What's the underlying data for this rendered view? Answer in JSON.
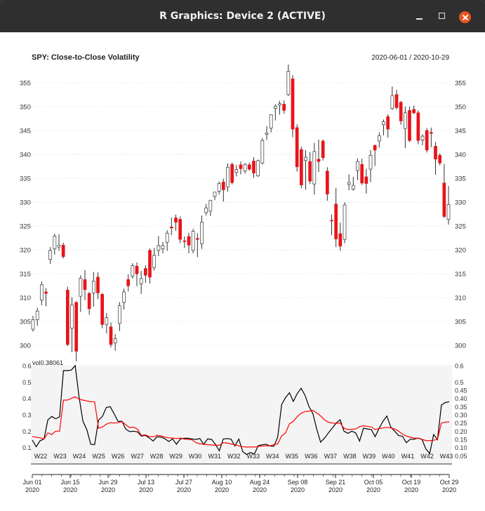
{
  "window": {
    "title": "R Graphics: Device 2 (ACTIVE)"
  },
  "chart_data": [
    {
      "type": "candlestick",
      "title": "SPY:  Close-to-Close Volatility",
      "date_range": "2020-06-01 / 2020-10-29",
      "y_ticks": [
        300,
        305,
        310,
        315,
        320,
        325,
        330,
        335,
        340,
        345,
        350,
        355
      ],
      "ylim": [
        296.5,
        358.5
      ],
      "grid": true,
      "up_color": "#ffffff",
      "down_color": "#e8141a",
      "candles": [
        {
          "o": 303.4,
          "h": 306.2,
          "l": 302.9,
          "c": 305.4
        },
        {
          "o": 305.4,
          "h": 307.9,
          "l": 304.1,
          "c": 307.2
        },
        {
          "o": 309.5,
          "h": 313.4,
          "l": 308.4,
          "c": 312.7
        },
        {
          "o": 311.2,
          "h": 312.0,
          "l": 308.2,
          "c": 310.9
        },
        {
          "o": 318.0,
          "h": 320.6,
          "l": 317.1,
          "c": 319.9
        },
        {
          "o": 320.2,
          "h": 323.4,
          "l": 319.0,
          "c": 322.9
        },
        {
          "o": 320.6,
          "h": 323.3,
          "l": 319.8,
          "c": 321.0
        },
        {
          "o": 321.0,
          "h": 321.5,
          "l": 318.2,
          "c": 318.6
        },
        {
          "o": 311.6,
          "h": 312.3,
          "l": 299.9,
          "c": 300.2
        },
        {
          "o": 303.6,
          "h": 310.1,
          "l": 298.6,
          "c": 308.5
        },
        {
          "o": 309.0,
          "h": 309.3,
          "l": 296.7,
          "c": 298.8
        },
        {
          "o": 310.3,
          "h": 314.7,
          "l": 307.0,
          "c": 314.1
        },
        {
          "o": 313.8,
          "h": 315.8,
          "l": 309.5,
          "c": 311.7
        },
        {
          "o": 310.9,
          "h": 311.2,
          "l": 306.4,
          "c": 307.7
        },
        {
          "o": 311.0,
          "h": 315.4,
          "l": 308.1,
          "c": 313.5
        },
        {
          "o": 314.3,
          "h": 315.3,
          "l": 309.7,
          "c": 311.0
        },
        {
          "o": 310.7,
          "h": 311.0,
          "l": 303.6,
          "c": 304.4
        },
        {
          "o": 304.4,
          "h": 306.8,
          "l": 302.5,
          "c": 305.8
        },
        {
          "o": 303.9,
          "h": 304.8,
          "l": 299.6,
          "c": 300.2
        },
        {
          "o": 300.5,
          "h": 302.4,
          "l": 298.9,
          "c": 301.4
        },
        {
          "o": 304.6,
          "h": 309.1,
          "l": 303.0,
          "c": 308.3
        },
        {
          "o": 309.0,
          "h": 311.9,
          "l": 307.5,
          "c": 311.2
        },
        {
          "o": 313.8,
          "h": 314.9,
          "l": 311.3,
          "c": 312.5
        },
        {
          "o": 314.5,
          "h": 317.2,
          "l": 314.0,
          "c": 316.7
        },
        {
          "o": 316.6,
          "h": 317.4,
          "l": 312.4,
          "c": 315.0
        },
        {
          "o": 312.9,
          "h": 315.6,
          "l": 310.8,
          "c": 314.0
        },
        {
          "o": 316.1,
          "h": 316.8,
          "l": 313.1,
          "c": 314.7
        },
        {
          "o": 319.9,
          "h": 320.3,
          "l": 313.0,
          "c": 314.3
        },
        {
          "o": 316.3,
          "h": 320.4,
          "l": 315.7,
          "c": 318.9
        },
        {
          "o": 319.9,
          "h": 322.9,
          "l": 318.7,
          "c": 320.9
        },
        {
          "o": 320.2,
          "h": 321.7,
          "l": 319.3,
          "c": 320.9
        },
        {
          "o": 321.6,
          "h": 324.1,
          "l": 319.8,
          "c": 323.5
        },
        {
          "o": 324.8,
          "h": 326.8,
          "l": 323.1,
          "c": 324.6
        },
        {
          "o": 326.7,
          "h": 327.4,
          "l": 324.0,
          "c": 325.8
        },
        {
          "o": 326.4,
          "h": 327.0,
          "l": 321.4,
          "c": 322.2
        },
        {
          "o": 321.9,
          "h": 322.8,
          "l": 320.4,
          "c": 321.8
        },
        {
          "o": 322.8,
          "h": 323.6,
          "l": 319.3,
          "c": 321.0
        },
        {
          "o": 319.9,
          "h": 324.4,
          "l": 319.3,
          "c": 323.9
        },
        {
          "o": 322.4,
          "h": 323.5,
          "l": 318.5,
          "c": 322.2
        },
        {
          "o": 321.3,
          "h": 327.2,
          "l": 320.2,
          "c": 325.8
        },
        {
          "o": 327.8,
          "h": 329.6,
          "l": 327.2,
          "c": 328.8
        },
        {
          "o": 328.1,
          "h": 330.4,
          "l": 327.1,
          "c": 330.4
        },
        {
          "o": 331.2,
          "h": 332.1,
          "l": 330.4,
          "c": 332.1
        },
        {
          "o": 332.3,
          "h": 334.3,
          "l": 331.6,
          "c": 333.9
        },
        {
          "o": 334.2,
          "h": 334.9,
          "l": 330.1,
          "c": 332.6
        },
        {
          "o": 333.2,
          "h": 338.1,
          "l": 332.2,
          "c": 337.3
        },
        {
          "o": 337.9,
          "h": 338.3,
          "l": 333.7,
          "c": 334.1
        },
        {
          "o": 336.2,
          "h": 337.8,
          "l": 335.4,
          "c": 336.8
        },
        {
          "o": 337.8,
          "h": 338.5,
          "l": 335.8,
          "c": 337.0
        },
        {
          "o": 336.5,
          "h": 338.2,
          "l": 336.0,
          "c": 337.9
        },
        {
          "o": 337.8,
          "h": 338.3,
          "l": 336.6,
          "c": 336.9
        },
        {
          "o": 338.6,
          "h": 339.4,
          "l": 335.1,
          "c": 336.1
        },
        {
          "o": 335.5,
          "h": 338.9,
          "l": 335.3,
          "c": 338.7
        },
        {
          "o": 338.2,
          "h": 343.4,
          "l": 337.9,
          "c": 342.9
        },
        {
          "o": 344.2,
          "h": 345.9,
          "l": 343.0,
          "c": 344.5
        },
        {
          "o": 345.5,
          "h": 348.3,
          "l": 344.6,
          "c": 348.3
        },
        {
          "o": 349.6,
          "h": 350.5,
          "l": 347.1,
          "c": 350.1
        },
        {
          "o": 350.3,
          "h": 351.2,
          "l": 348.3,
          "c": 350.6
        },
        {
          "o": 350.5,
          "h": 351.3,
          "l": 348.5,
          "c": 349.2
        },
        {
          "o": 352.5,
          "h": 358.8,
          "l": 352.2,
          "c": 357.4
        },
        {
          "o": 355.8,
          "h": 356.6,
          "l": 343.6,
          "c": 345.3
        },
        {
          "o": 345.6,
          "h": 346.3,
          "l": 336.4,
          "c": 337.4
        },
        {
          "o": 341.0,
          "h": 341.6,
          "l": 332.9,
          "c": 333.6
        },
        {
          "o": 338.7,
          "h": 340.9,
          "l": 332.6,
          "c": 339.4
        },
        {
          "o": 338.5,
          "h": 340.5,
          "l": 333.8,
          "c": 334.4
        },
        {
          "o": 333.8,
          "h": 342.4,
          "l": 331.6,
          "c": 340.6
        },
        {
          "o": 339.0,
          "h": 343.1,
          "l": 336.3,
          "c": 338.5
        },
        {
          "o": 342.8,
          "h": 343.1,
          "l": 338.7,
          "c": 339.3
        },
        {
          "o": 336.5,
          "h": 337.3,
          "l": 330.3,
          "c": 331.7
        },
        {
          "o": 326.2,
          "h": 327.4,
          "l": 323.1,
          "c": 326.1
        },
        {
          "o": 329.6,
          "h": 333.0,
          "l": 320.6,
          "c": 322.3
        },
        {
          "o": 323.4,
          "h": 325.7,
          "l": 319.8,
          "c": 320.8
        },
        {
          "o": 322.2,
          "h": 330.0,
          "l": 321.4,
          "c": 329.4
        },
        {
          "o": 333.7,
          "h": 335.8,
          "l": 332.5,
          "c": 334.1
        },
        {
          "o": 332.7,
          "h": 335.3,
          "l": 332.4,
          "c": 333.5
        },
        {
          "o": 336.6,
          "h": 339.1,
          "l": 334.6,
          "c": 338.5
        },
        {
          "o": 337.9,
          "h": 339.1,
          "l": 333.6,
          "c": 334.0
        },
        {
          "o": 335.3,
          "h": 337.0,
          "l": 331.8,
          "c": 333.9
        },
        {
          "o": 336.9,
          "h": 340.9,
          "l": 334.2,
          "c": 339.8
        },
        {
          "o": 341.9,
          "h": 342.0,
          "l": 337.6,
          "c": 340.9
        },
        {
          "o": 342.8,
          "h": 344.6,
          "l": 341.4,
          "c": 343.9
        },
        {
          "o": 346.2,
          "h": 347.3,
          "l": 344.0,
          "c": 346.8
        },
        {
          "o": 347.9,
          "h": 348.4,
          "l": 343.5,
          "c": 345.3
        },
        {
          "o": 349.6,
          "h": 354.2,
          "l": 349.3,
          "c": 352.3
        },
        {
          "o": 352.5,
          "h": 353.5,
          "l": 349.4,
          "c": 349.8
        },
        {
          "o": 350.9,
          "h": 351.2,
          "l": 346.2,
          "c": 347.0
        },
        {
          "o": 345.4,
          "h": 350.0,
          "l": 341.3,
          "c": 348.7
        },
        {
          "o": 349.2,
          "h": 350.0,
          "l": 342.6,
          "c": 342.9
        },
        {
          "o": 349.4,
          "h": 350.2,
          "l": 348.4,
          "c": 348.7
        },
        {
          "o": 348.7,
          "h": 349.2,
          "l": 342.1,
          "c": 342.9
        },
        {
          "o": 343.0,
          "h": 344.2,
          "l": 341.9,
          "c": 343.8
        },
        {
          "o": 345.0,
          "h": 345.5,
          "l": 340.4,
          "c": 340.9
        },
        {
          "o": 344.6,
          "h": 345.6,
          "l": 341.5,
          "c": 344.4
        },
        {
          "o": 341.7,
          "h": 342.6,
          "l": 335.7,
          "c": 339.0
        },
        {
          "o": 339.8,
          "h": 340.2,
          "l": 337.7,
          "c": 338.2
        },
        {
          "o": 334.0,
          "h": 338.0,
          "l": 326.7,
          "c": 327.0
        },
        {
          "o": 326.4,
          "h": 333.4,
          "l": 325.3,
          "c": 329.5
        }
      ]
    },
    {
      "type": "line",
      "title": "vol",
      "label_value": "0.38061",
      "left_ticks": [
        "0.1",
        "0.2",
        "0.3",
        "0.4",
        "0.5",
        "0.6"
      ],
      "right_ticks": [
        "0.05",
        "0.10",
        "0.15",
        "0.20",
        "0.25",
        "0.30",
        "0.35",
        "0.40",
        "0.45",
        "0.5",
        "0.6"
      ],
      "ylim": [
        0.0,
        0.6
      ],
      "grid": true,
      "series": [
        {
          "color": "#000000",
          "values": [
            0.146,
            0.105,
            0.142,
            0.152,
            0.269,
            0.29,
            0.276,
            0.288,
            0.57,
            0.57,
            0.573,
            0.601,
            0.41,
            0.26,
            0.21,
            0.12,
            0.118,
            0.268,
            0.29,
            0.345,
            0.35,
            0.307,
            0.26,
            0.261,
            0.212,
            0.197,
            0.2,
            0.196,
            0.17,
            0.175,
            0.16,
            0.14,
            0.166,
            0.164,
            0.155,
            0.137,
            0.153,
            0.12,
            0.153,
            0.157,
            0.157,
            0.153,
            0.15,
            0.155,
            0.12,
            0.153,
            0.15,
            0.12,
            0.08,
            0.152,
            0.155,
            0.152,
            0.11,
            0.152,
            0.076,
            0.058,
            0.07,
            0.061,
            0.112,
            0.117,
            0.12,
            0.11,
            0.108,
            0.165,
            0.363,
            0.405,
            0.435,
            0.382,
            0.43,
            0.462,
            0.419,
            0.352,
            0.309,
            0.212,
            0.133,
            0.158,
            0.19,
            0.22,
            0.25,
            0.27,
            0.2,
            0.187,
            0.2,
            0.19,
            0.14,
            0.218,
            0.214,
            0.21,
            0.167,
            0.218,
            0.26,
            0.293,
            0.226,
            0.2,
            0.174,
            0.169,
            0.13,
            0.151,
            0.151,
            0.158,
            0.151,
            0.092,
            0.063,
            0.18,
            0.149,
            0.36,
            0.375,
            0.38
          ]
        },
        {
          "color": "#ff0000",
          "values": [
            0.168,
            0.163,
            0.16,
            0.152,
            0.19,
            0.18,
            0.2,
            0.2,
            0.39,
            0.39,
            0.4,
            0.41,
            0.396,
            0.39,
            0.385,
            0.38,
            0.38,
            0.218,
            0.225,
            0.243,
            0.252,
            0.25,
            0.252,
            0.258,
            0.24,
            0.222,
            0.225,
            0.212,
            0.174,
            0.178,
            0.168,
            0.166,
            0.175,
            0.172,
            0.164,
            0.16,
            0.158,
            0.155,
            0.158,
            0.152,
            0.15,
            0.148,
            0.13,
            0.124,
            0.12,
            0.118,
            0.116,
            0.114,
            0.114,
            0.13,
            0.128,
            0.122,
            0.118,
            0.11,
            0.106,
            0.103,
            0.104,
            0.103,
            0.107,
            0.11,
            0.11,
            0.111,
            0.118,
            0.123,
            0.172,
            0.19,
            0.245,
            0.26,
            0.289,
            0.31,
            0.32,
            0.322,
            0.328,
            0.312,
            0.293,
            0.269,
            0.255,
            0.25,
            0.248,
            0.25,
            0.218,
            0.21,
            0.212,
            0.214,
            0.228,
            0.233,
            0.23,
            0.226,
            0.21,
            0.216,
            0.22,
            0.224,
            0.22,
            0.214,
            0.2,
            0.182,
            0.17,
            0.163,
            0.158,
            0.157,
            0.15,
            0.143,
            0.142,
            0.145,
            0.15,
            0.25,
            0.255,
            0.257
          ]
        }
      ]
    }
  ],
  "x_axis": {
    "week_labels": [
      "W22",
      "W23",
      "W24",
      "W25",
      "W26",
      "W27",
      "W28",
      "W29",
      "W30",
      "W31",
      "W32",
      "W33",
      "W34",
      "W35",
      "W36",
      "W37",
      "W38",
      "W39",
      "W40",
      "W41",
      "W42",
      "W43"
    ],
    "date_labels": [
      {
        "date": "Jun 01",
        "year": "2020"
      },
      {
        "date": "Jun 15",
        "year": "2020"
      },
      {
        "date": "Jun 29",
        "year": "2020"
      },
      {
        "date": "Jul 13",
        "year": "2020"
      },
      {
        "date": "Jul 27",
        "year": "2020"
      },
      {
        "date": "Aug 10",
        "year": "2020"
      },
      {
        "date": "Aug 24",
        "year": "2020"
      },
      {
        "date": "Sep 08",
        "year": "2020"
      },
      {
        "date": "Sep 21",
        "year": "2020"
      },
      {
        "date": "Oct 05",
        "year": "2020"
      },
      {
        "date": "Oct 19",
        "year": "2020"
      },
      {
        "date": "Oct 29",
        "year": "2020"
      }
    ]
  }
}
